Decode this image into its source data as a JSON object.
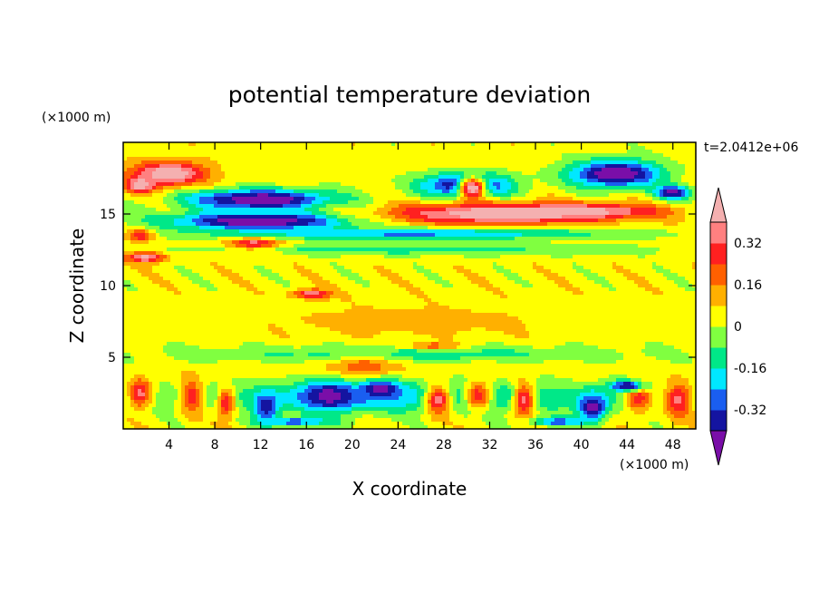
{
  "chart_data": {
    "type": "heatmap",
    "title": "potential temperature deviation",
    "xlabel": "X coordinate",
    "ylabel": "Z coordinate",
    "x_unit": "(×1000 m)",
    "y_unit": "(×1000 m)",
    "annotation": "t=2.0412e+06",
    "xlim": [
      0,
      50
    ],
    "ylim": [
      0,
      20
    ],
    "x_ticks": [
      4,
      8,
      12,
      16,
      20,
      24,
      28,
      32,
      36,
      40,
      44,
      48
    ],
    "y_ticks": [
      5,
      10,
      15
    ],
    "colorbar": {
      "levels": [
        -0.4,
        -0.32,
        -0.24,
        -0.16,
        -0.08,
        0,
        0.08,
        0.16,
        0.24,
        0.32,
        0.4
      ],
      "labels": [
        "0.32",
        "0.16",
        "0",
        "-0.16",
        "-0.32"
      ],
      "label_values": [
        0.32,
        0.16,
        0,
        -0.16,
        -0.32
      ],
      "colors": [
        "#7a0ea8",
        "#1414a0",
        "#1a5ef0",
        "#00e8ff",
        "#00e888",
        "#80ff40",
        "#ffff00",
        "#ffb000",
        "#ff6000",
        "#ff2020",
        "#ff8080",
        "#f4b0b0"
      ],
      "top_extension_color": "#f4b0b0",
      "bottom_extension_color": "#7a0ea8"
    },
    "background_value": 0.04,
    "blobs": [
      {
        "x": 4,
        "y": 17.8,
        "rx": 4,
        "ry": 1.1,
        "v": 0.5
      },
      {
        "x": 1.5,
        "y": 17,
        "rx": 1.5,
        "ry": 0.7,
        "v": 0.5
      },
      {
        "x": 12,
        "y": 16,
        "rx": 8,
        "ry": 0.9,
        "v": -0.5
      },
      {
        "x": 12,
        "y": 14.5,
        "rx": 10,
        "ry": 0.8,
        "v": -0.5
      },
      {
        "x": 30,
        "y": 17,
        "rx": 5,
        "ry": 1.1,
        "v": -0.45
      },
      {
        "x": 43,
        "y": 17.8,
        "rx": 5,
        "ry": 1.2,
        "v": -0.5
      },
      {
        "x": 48,
        "y": 16.5,
        "rx": 2,
        "ry": 0.6,
        "v": -0.45
      },
      {
        "x": 33,
        "y": 15,
        "rx": 12,
        "ry": 0.9,
        "v": 0.5
      },
      {
        "x": 40,
        "y": 15.2,
        "rx": 8,
        "ry": 0.6,
        "v": 0.45
      },
      {
        "x": 30.5,
        "y": 16.8,
        "rx": 1.5,
        "ry": 1.0,
        "v": 0.5
      },
      {
        "x": 11.5,
        "y": 12.8,
        "rx": 3,
        "ry": 0.7,
        "v": 0.5
      },
      {
        "x": 1.5,
        "y": 13.5,
        "rx": 1.5,
        "ry": 0.5,
        "v": 0.4
      },
      {
        "x": 2,
        "y": 12,
        "rx": 2.2,
        "ry": 0.5,
        "v": 0.45
      },
      {
        "x": 25,
        "y": 12.5,
        "rx": 25,
        "ry": 0.5,
        "v": -0.12
      },
      {
        "x": 25,
        "y": 13.6,
        "rx": 22,
        "ry": 0.5,
        "v": -0.25
      },
      {
        "x": 16.5,
        "y": 9.4,
        "rx": 2,
        "ry": 0.4,
        "v": 0.45
      },
      {
        "x": 25,
        "y": 7.5,
        "rx": 20,
        "ry": 1.8,
        "v": 0.1
      },
      {
        "x": 27,
        "y": 5.7,
        "rx": 3,
        "ry": 0.35,
        "v": 0.5
      },
      {
        "x": 25,
        "y": 5.2,
        "rx": 25,
        "ry": 0.8,
        "v": -0.12
      },
      {
        "x": 25,
        "y": 4.2,
        "rx": 25,
        "ry": 0.5,
        "v": 0.08
      },
      {
        "x": 21,
        "y": 4.3,
        "rx": 3,
        "ry": 1,
        "v": 0.22
      },
      {
        "x": 25,
        "y": 2.2,
        "rx": 25,
        "ry": 1.4,
        "v": -0.22
      },
      {
        "x": 1.5,
        "y": 2.5,
        "rx": 1.2,
        "ry": 1.3,
        "v": 0.35
      },
      {
        "x": 6,
        "y": 2.2,
        "rx": 1.2,
        "ry": 1.6,
        "v": 0.3
      },
      {
        "x": 9,
        "y": 1.8,
        "rx": 1,
        "ry": 1.4,
        "v": 0.3
      },
      {
        "x": 12.5,
        "y": 1.5,
        "rx": 1.3,
        "ry": 1.2,
        "v": -0.4
      },
      {
        "x": 18,
        "y": 2.3,
        "rx": 3,
        "ry": 1.2,
        "v": -0.45
      },
      {
        "x": 22.5,
        "y": 2.8,
        "rx": 2,
        "ry": 0.7,
        "v": -0.45
      },
      {
        "x": 27.5,
        "y": 2,
        "rx": 1.5,
        "ry": 1.4,
        "v": 0.35
      },
      {
        "x": 31,
        "y": 2.3,
        "rx": 1.5,
        "ry": 1.3,
        "v": 0.3
      },
      {
        "x": 35,
        "y": 2,
        "rx": 1.2,
        "ry": 1.6,
        "v": 0.35
      },
      {
        "x": 41,
        "y": 1.5,
        "rx": 1.5,
        "ry": 1.2,
        "v": -0.45
      },
      {
        "x": 45,
        "y": 2.2,
        "rx": 1.5,
        "ry": 1.4,
        "v": 0.3
      },
      {
        "x": 48.5,
        "y": 2,
        "rx": 1.5,
        "ry": 1.5,
        "v": 0.35
      },
      {
        "x": 44,
        "y": 3,
        "rx": 2,
        "ry": 0.5,
        "v": -0.4
      },
      {
        "x": 15,
        "y": 0.5,
        "rx": 4,
        "ry": 0.4,
        "v": -0.3
      },
      {
        "x": 38,
        "y": 0.5,
        "rx": 3,
        "ry": 0.4,
        "v": -0.3
      }
    ]
  }
}
